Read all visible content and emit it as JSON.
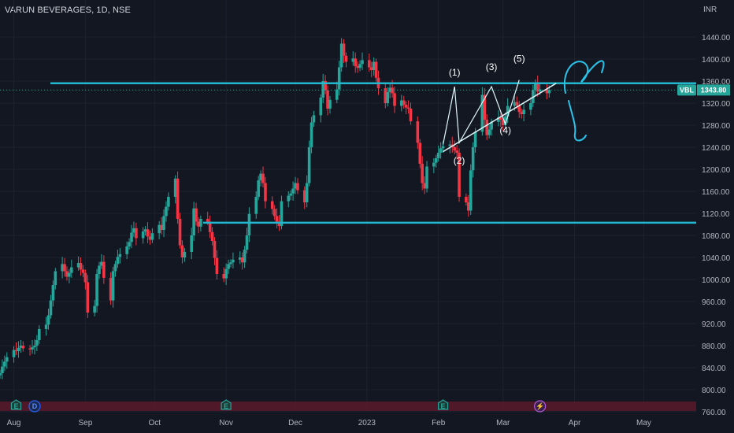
{
  "header": {
    "title": "VARUN BEVERAGES, 1D, NSE",
    "currency": "INR"
  },
  "colors": {
    "background": "#131722",
    "up": "#26a69a",
    "down": "#f23645",
    "level_line": "#22b8cf",
    "trend_line": "#e0f7fa",
    "sketch": "#29c2e8",
    "price_tag": "#26a69a",
    "events_band": "#5b1a2a"
  },
  "price_tag": {
    "symbol": "VBL",
    "price": "1343.80"
  },
  "events": [
    {
      "label": "E",
      "date": "Aug 2",
      "kind": "earnings"
    },
    {
      "label": "D",
      "date": "Aug 10",
      "kind": "dividend"
    },
    {
      "label": "E",
      "date": "Nov 1",
      "kind": "earnings"
    },
    {
      "label": "E",
      "date": "Feb 3",
      "kind": "earnings"
    },
    {
      "label": "⚡",
      "date": "Mar 17",
      "kind": "split"
    }
  ],
  "chart_data": {
    "type": "candlestick",
    "title": "VARUN BEVERAGES, 1D, NSE",
    "ylabel": "INR",
    "ylim": [
      750,
      1475
    ],
    "y_ticks": [
      "1440.00",
      "1400.00",
      "1360.00",
      "1320.00",
      "1280.00",
      "1240.00",
      "1200.00",
      "1160.00",
      "1120.00",
      "1080.00",
      "1040.00",
      "1000.00",
      "960.00",
      "920.00",
      "880.00",
      "840.00",
      "800.00",
      "760.00"
    ],
    "x_ticks": [
      "Aug",
      "Sep",
      "Oct",
      "Nov",
      "Dec",
      "2023",
      "Feb",
      "Mar",
      "Apr",
      "May"
    ],
    "last_price": 1343.8,
    "horizontal_levels": [
      1356,
      1103
    ],
    "trendline": {
      "from": {
        "date": "Feb 3",
        "price": 1232
      },
      "to": {
        "date": "Mar 24",
        "price": 1356
      }
    },
    "wave_labels": [
      {
        "text": "(1)",
        "date": "Feb 8",
        "price": 1370
      },
      {
        "text": "(2)",
        "date": "Feb 10",
        "price": 1210
      },
      {
        "text": "(3)",
        "date": "Feb 24",
        "price": 1380
      },
      {
        "text": "(4)",
        "date": "Mar 2",
        "price": 1265
      },
      {
        "text": "(5)",
        "date": "Mar 8",
        "price": 1395
      }
    ],
    "closes": [
      830,
      842,
      851,
      859,
      872,
      870,
      876,
      880,
      875,
      873,
      877,
      880,
      890,
      910,
      918,
      935,
      962,
      990,
      1015,
      1028,
      1015,
      1005,
      1012,
      1022,
      1030,
      1018,
      1012,
      995,
      940,
      952,
      1010,
      1025,
      1032,
      1003,
      962,
      1015,
      1028,
      1041,
      1046,
      1060,
      1068,
      1085,
      1093,
      1075,
      1087,
      1091,
      1078,
      1072,
      1084,
      1099,
      1090,
      1115,
      1132,
      1150,
      1183,
      1110,
      1062,
      1040,
      1050,
      1080,
      1129,
      1105,
      1096,
      1110,
      1105,
      1086,
      1070,
      1039,
      1010,
      1002,
      1019,
      1028,
      1031,
      1036,
      1040,
      1031,
      1054,
      1080,
      1119,
      1150,
      1180,
      1192,
      1175,
      1142,
      1128,
      1115,
      1105,
      1097,
      1142,
      1152,
      1156,
      1165,
      1175,
      1162,
      1140,
      1175,
      1240,
      1285,
      1298,
      1330,
      1360,
      1343,
      1310,
      1326,
      1345,
      1385,
      1428,
      1406,
      1395,
      1401,
      1387,
      1384,
      1391,
      1398,
      1385,
      1380,
      1395,
      1366,
      1347,
      1320,
      1340,
      1348,
      1338,
      1315,
      1325,
      1317,
      1312,
      1310,
      1287,
      1248,
      1210,
      1175,
      1165,
      1205,
      1212,
      1220,
      1230,
      1238,
      1242,
      1245,
      1240,
      1234,
      1230,
      1150,
      1140,
      1125,
      1198,
      1240,
      1268,
      1335,
      1290,
      1262,
      1272,
      1286,
      1294,
      1290,
      1280,
      1296,
      1315,
      1322,
      1316,
      1304,
      1300,
      1308,
      1320,
      1344,
      1356,
      1341,
      1345,
      1338,
      1344
    ],
    "start_date": "2022-07-26"
  }
}
